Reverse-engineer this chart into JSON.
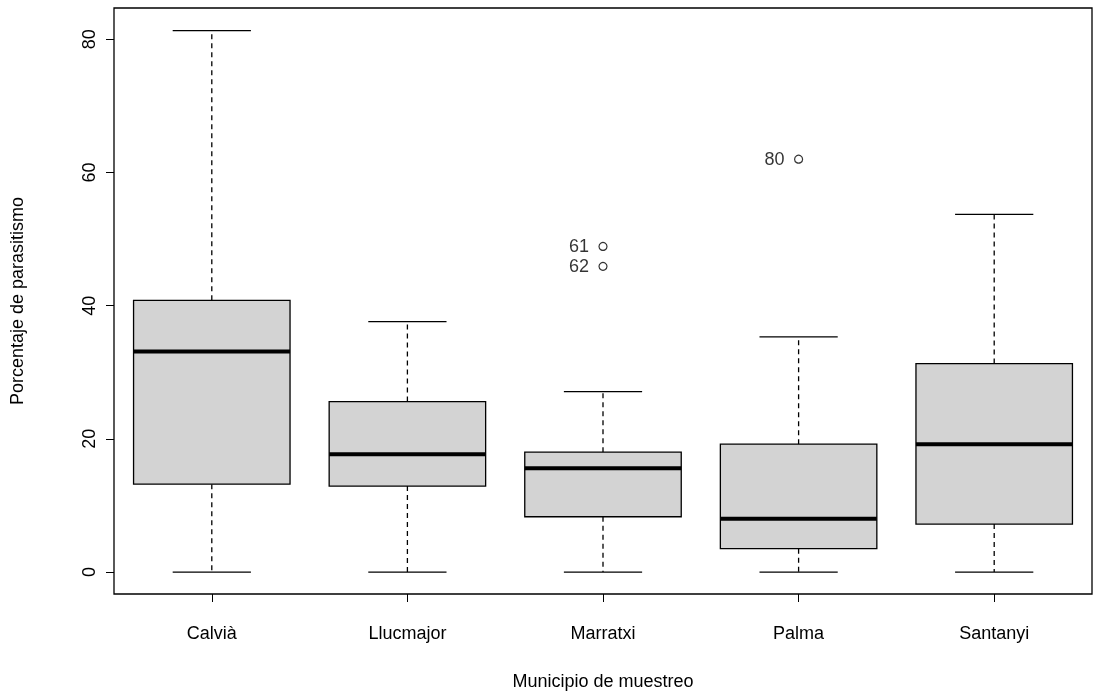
{
  "chart_data": {
    "type": "box",
    "xlabel": "Municipio de muestreo",
    "ylabel": "Porcentaje de parasitismo",
    "categories": [
      "Calvià",
      "Llucmajor",
      "Marratxi",
      "Palma",
      "Santanyi"
    ],
    "boxes": [
      {
        "low": 0,
        "q1": 13.2,
        "median": 33.1,
        "q3": 40.8,
        "high": 81.3
      },
      {
        "low": 0,
        "q1": 12.9,
        "median": 17.7,
        "q3": 25.6,
        "high": 37.6
      },
      {
        "low": 0,
        "q1": 8.3,
        "median": 15.6,
        "q3": 18.0,
        "high": 27.1,
        "outliers": [
          48.9,
          45.9
        ]
      },
      {
        "low": 0,
        "q1": 3.5,
        "median": 8.0,
        "q3": 19.2,
        "high": 35.3,
        "outliers": [
          62.0
        ]
      },
      {
        "low": 0,
        "q1": 7.2,
        "median": 19.2,
        "q3": 31.3,
        "high": 53.7
      }
    ],
    "color": "#d3d3d3",
    "ylim": [
      -3.3,
      84.7
    ],
    "yticks": [
      0,
      20,
      40,
      60,
      80
    ],
    "annotations": [
      "61",
      "62",
      "80"
    ]
  }
}
